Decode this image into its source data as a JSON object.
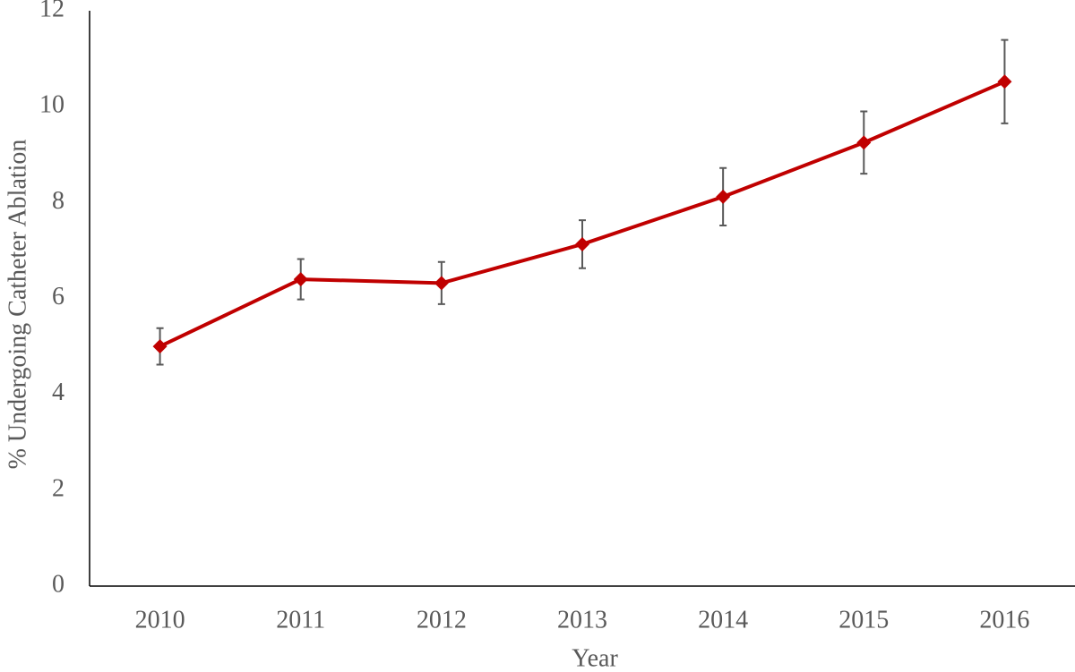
{
  "chart_data": {
    "type": "line",
    "x_label": "Year",
    "y_label": "% Undergoing Catheter Ablation",
    "categories": [
      "2010",
      "2011",
      "2012",
      "2013",
      "2014",
      "2015",
      "2016"
    ],
    "series": [
      {
        "name": "Catheter ablation",
        "color": "#c00000",
        "values": [
          5.0,
          6.4,
          6.32,
          7.13,
          8.12,
          9.25,
          10.52
        ],
        "errors": [
          0.38,
          0.42,
          0.44,
          0.5,
          0.6,
          0.65,
          0.87
        ]
      }
    ],
    "error_color": "#595959",
    "ylim": [
      0,
      12
    ],
    "yticks": [
      0,
      2,
      4,
      6,
      8,
      10,
      12
    ],
    "grid": false
  }
}
